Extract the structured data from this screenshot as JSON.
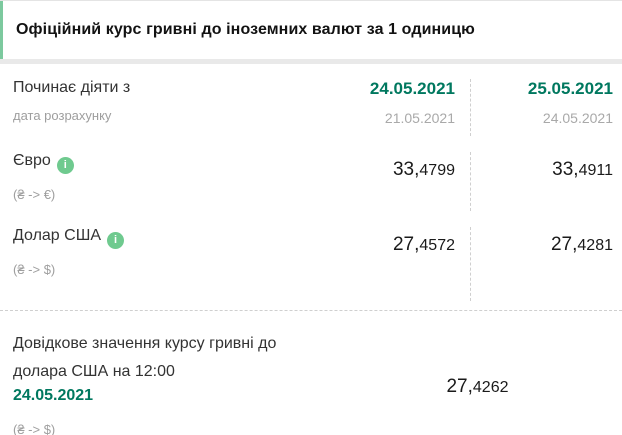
{
  "header": {
    "title": "Офіційний курс гривні до іноземних валют за 1 одиницю"
  },
  "dates_row": {
    "label": "Починає діяти з",
    "sublabel": "дата розрахунку",
    "col1": {
      "effective_date": "24.05.2021",
      "calc_date": "21.05.2021"
    },
    "col2": {
      "effective_date": "25.05.2021",
      "calc_date": "24.05.2021"
    }
  },
  "currencies": [
    {
      "name": "Євро",
      "pair": "(₴ -> €)",
      "rates": [
        {
          "int_part": "33,",
          "dec_part": "4799"
        },
        {
          "int_part": "33,",
          "dec_part": "4911"
        }
      ]
    },
    {
      "name": "Долар США",
      "pair": "(₴ -> $)",
      "rates": [
        {
          "int_part": "27,",
          "dec_part": "4572"
        },
        {
          "int_part": "27,",
          "dec_part": "4281"
        }
      ]
    }
  ],
  "reference": {
    "title": "Довідкове значення курсу гривні до долара США на 12:00",
    "date": "24.05.2021",
    "pair": "(₴ -> $)",
    "rate": {
      "int_part": "27,",
      "dec_part": "4262"
    }
  },
  "icons": {
    "info_glyph": "i"
  },
  "colors": {
    "accent_green": "#00785f",
    "info_green": "#6fca8f",
    "header_border_green": "#7cc99e",
    "gray_text": "#9e9e9e",
    "dark_text": "#1a1a1a",
    "divider_gray": "#cfcfcf"
  }
}
